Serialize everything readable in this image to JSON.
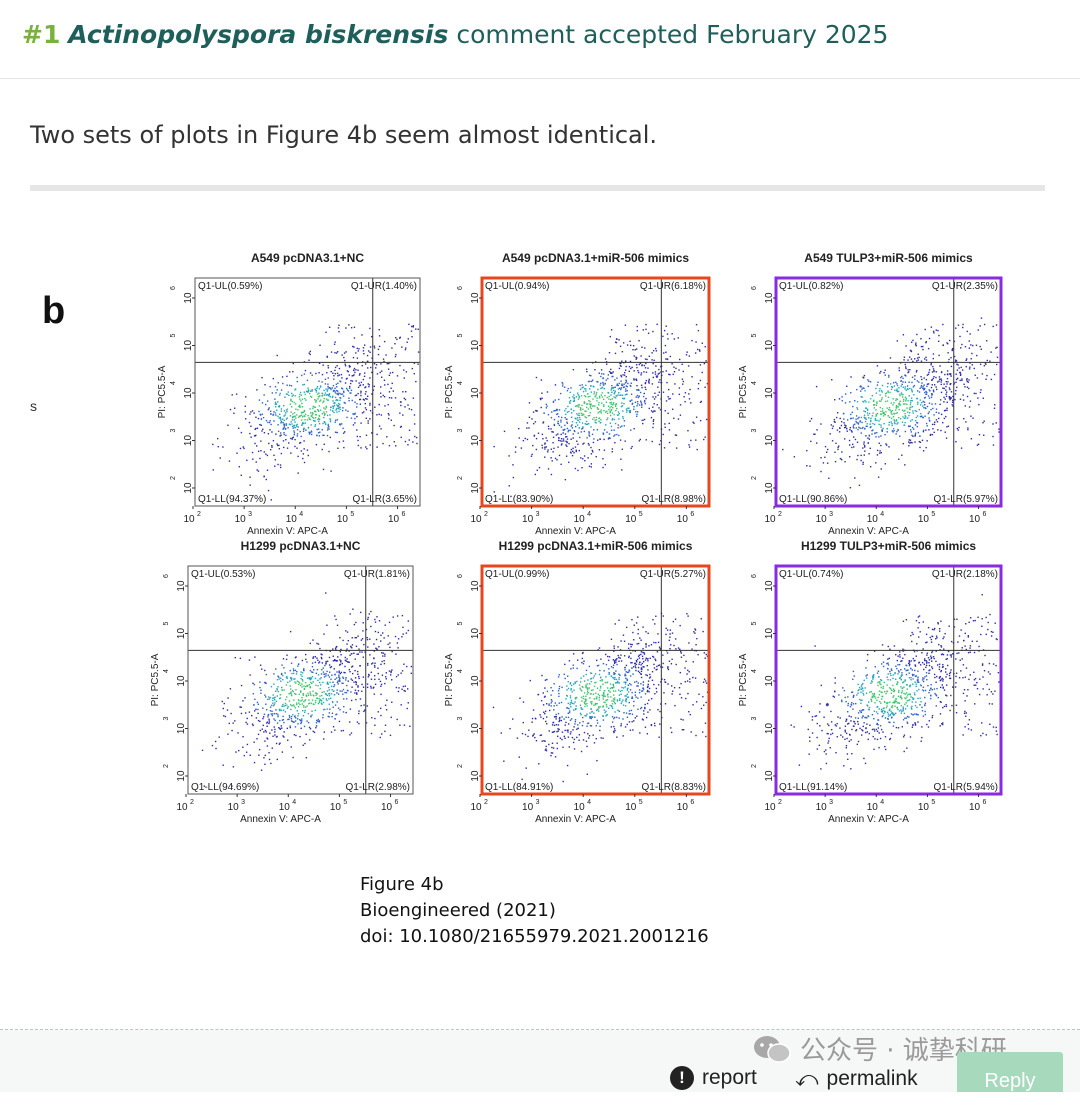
{
  "header": {
    "number": "#1",
    "species": "Actinopolyspora biskrensis",
    "status": "comment accepted February 2025"
  },
  "comment": {
    "text": "Two sets of plots in Figure 4b seem almost identical."
  },
  "figure": {
    "panel_letter": "b",
    "side_mark": "s",
    "panels": [
      {
        "title": "A549 pcDNA3.1+NC",
        "ul": "Q1-UL(0.59%)",
        "ur": "Q1-UR(1.40%)",
        "ll": "Q1-LL(94.37%)",
        "lr": "Q1-LR(3.65%)",
        "border": "#555555"
      },
      {
        "title": "A549 pcDNA3.1+miR-506 mimics",
        "ul": "Q1-UL(0.94%)",
        "ur": "Q1-UR(6.18%)",
        "ll": "Q1-LL(83.90%)",
        "lr": "Q1-LR(8.98%)",
        "border": "#e8471e"
      },
      {
        "title": "A549 TULP3+miR-506 mimics",
        "ul": "Q1-UL(0.82%)",
        "ur": "Q1-UR(2.35%)",
        "ll": "Q1-LL(90.86%)",
        "lr": "Q1-LR(5.97%)",
        "border": "#8a2be2"
      },
      {
        "title": "H1299 pcDNA3.1+NC",
        "ul": "Q1-UL(0.53%)",
        "ur": "Q1-UR(1.81%)",
        "ll": "Q1-LL(94.69%)",
        "lr": "Q1-LR(2.98%)",
        "border": "#555555"
      },
      {
        "title": "H1299 pcDNA3.1+miR-506 mimics",
        "ul": "Q1-UL(0.99%)",
        "ur": "Q1-UR(5.27%)",
        "ll": "Q1-LL(84.91%)",
        "lr": "Q1-LR(8.83%)",
        "border": "#e8471e"
      },
      {
        "title": "H1299 TULP3+miR-506 mimics",
        "ul": "Q1-UL(0.74%)",
        "ur": "Q1-UR(2.18%)",
        "ll": "Q1-LL(91.14%)",
        "lr": "Q1-LR(5.94%)",
        "border": "#8a2be2"
      }
    ],
    "xlabel": "Annexin V: APC-A",
    "ylabel": "PI: PC5.5-A",
    "xticks": [
      "10",
      "10",
      "10",
      "10",
      "10"
    ],
    "xtick_exp": [
      "2",
      "3",
      "4",
      "5",
      "6"
    ],
    "yticks": [
      "10",
      "10",
      "10",
      "10",
      "10"
    ],
    "ytick_exp": [
      "2",
      "3",
      "4",
      "5",
      "6"
    ],
    "caption": [
      "Figure 4b",
      "Bioengineered (2021)",
      "doi: 10.1080/21655979.2021.2001216"
    ]
  },
  "footer": {
    "report_label": "report",
    "permalink_label": "permalink",
    "reply_label": "Reply",
    "watermark": "公众号 · 诚挚科研",
    "icons": {
      "report": "exclamation-circle-icon",
      "permalink": "share-icon",
      "watermark": "wechat-logo-icon"
    }
  },
  "colors": {
    "header_text": "#1f5f5b",
    "number": "#7ab13e",
    "reply_bg": "#a7d9bd"
  }
}
